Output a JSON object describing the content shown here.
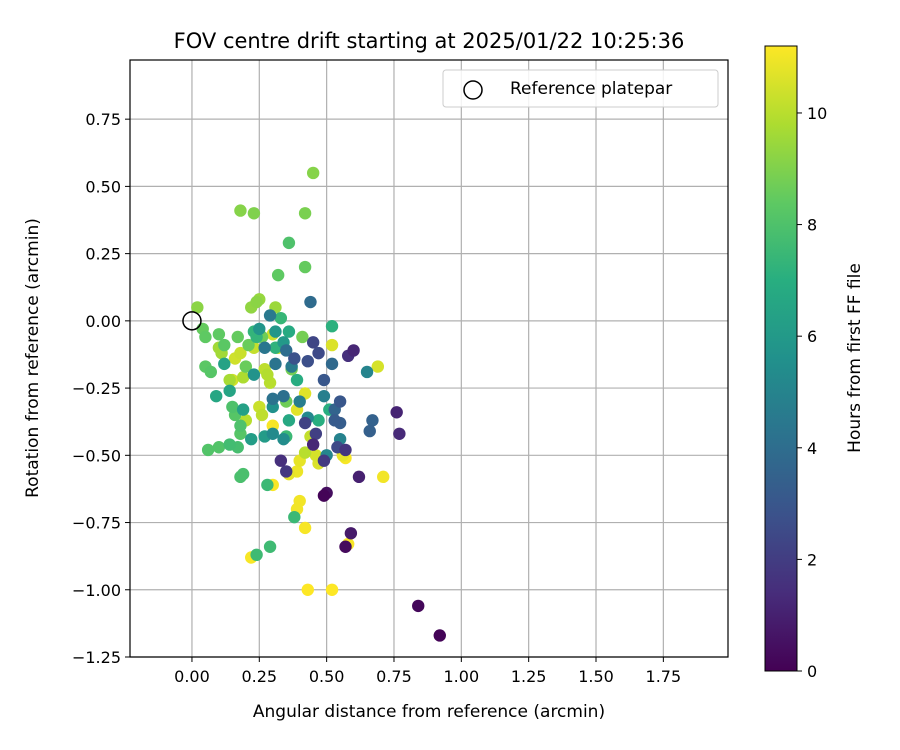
{
  "chart_data": {
    "type": "scatter",
    "title": "FOV centre drift starting at 2025/01/22 10:25:36",
    "xlabel": "Angular distance from reference (arcmin)",
    "ylabel": "Rotation from reference (arcmin)",
    "xlim": [
      -0.23,
      1.99
    ],
    "ylim": [
      -1.25,
      0.97
    ],
    "xticks": [
      "0.00",
      "0.25",
      "0.50",
      "0.75",
      "1.00",
      "1.25",
      "1.50",
      "1.75"
    ],
    "yticks": [
      "0.75",
      "0.50",
      "0.25",
      "0.00",
      "−0.25",
      "−0.50",
      "−0.75",
      "−1.00",
      "−1.25"
    ],
    "grid": true,
    "legend_position": "top-right",
    "legend": [
      {
        "label": "Reference platepar",
        "marker": "open-circle"
      }
    ],
    "reference_point": {
      "x": 0.0,
      "y": 0.0
    },
    "colorbar": {
      "label": "Hours from first FF file",
      "range": [
        0,
        11.2
      ],
      "ticks": [
        "0",
        "2",
        "4",
        "6",
        "8",
        "10"
      ],
      "colormap": "viridis"
    },
    "series": [
      {
        "points": [
          [
            0.92,
            -1.17,
            0.1
          ],
          [
            0.84,
            -1.06,
            0.2
          ],
          [
            0.49,
            -0.65,
            0.1
          ],
          [
            0.5,
            -0.64,
            0.4
          ],
          [
            0.57,
            -0.84,
            0.3
          ],
          [
            0.59,
            -0.79,
            0.8
          ],
          [
            0.62,
            -0.58,
            1.0
          ],
          [
            0.76,
            -0.34,
            1.1
          ],
          [
            0.77,
            -0.42,
            1.3
          ],
          [
            0.6,
            -0.11,
            1.2
          ],
          [
            0.58,
            -0.13,
            1.5
          ],
          [
            0.45,
            -0.46,
            1.2
          ],
          [
            0.33,
            -0.52,
            1.5
          ],
          [
            0.35,
            -0.56,
            1.8
          ],
          [
            0.57,
            -0.48,
            1.7
          ],
          [
            0.49,
            -0.52,
            1.9
          ],
          [
            0.46,
            -0.42,
            2.1
          ],
          [
            0.42,
            -0.38,
            2.2
          ],
          [
            0.45,
            -0.08,
            2.3
          ],
          [
            0.47,
            -0.12,
            2.5
          ],
          [
            0.54,
            -0.47,
            2.5
          ],
          [
            0.43,
            -0.15,
            2.7
          ],
          [
            0.38,
            -0.14,
            2.8
          ],
          [
            0.49,
            -0.22,
            3.0
          ],
          [
            0.55,
            -0.3,
            3.0
          ],
          [
            0.53,
            -0.37,
            3.2
          ],
          [
            0.55,
            -0.38,
            3.3
          ],
          [
            0.66,
            -0.41,
            3.4
          ],
          [
            0.67,
            -0.37,
            3.5
          ],
          [
            0.53,
            -0.33,
            3.6
          ],
          [
            0.52,
            -0.16,
            3.8
          ],
          [
            0.44,
            0.07,
            3.9
          ],
          [
            0.35,
            -0.11,
            4.0
          ],
          [
            0.34,
            -0.28,
            4.1
          ],
          [
            0.3,
            -0.29,
            4.2
          ],
          [
            0.31,
            -0.16,
            4.3
          ],
          [
            0.27,
            -0.1,
            4.4
          ],
          [
            0.29,
            0.02,
            4.5
          ],
          [
            0.37,
            -0.17,
            4.6
          ],
          [
            0.4,
            -0.3,
            4.7
          ],
          [
            0.49,
            -0.28,
            4.8
          ],
          [
            0.55,
            -0.44,
            4.9
          ],
          [
            0.65,
            -0.19,
            5.0
          ],
          [
            0.5,
            -0.5,
            5.1
          ],
          [
            0.43,
            -0.36,
            5.2
          ],
          [
            0.3,
            -0.42,
            5.3
          ],
          [
            0.34,
            -0.44,
            5.4
          ],
          [
            0.3,
            -0.32,
            5.6
          ],
          [
            0.23,
            -0.2,
            5.7
          ],
          [
            0.25,
            -0.03,
            5.8
          ],
          [
            0.31,
            -0.04,
            5.9
          ],
          [
            0.34,
            -0.08,
            6.0
          ],
          [
            0.27,
            -0.43,
            6.1
          ],
          [
            0.22,
            -0.44,
            6.2
          ],
          [
            0.19,
            -0.33,
            6.3
          ],
          [
            0.12,
            -0.16,
            6.4
          ],
          [
            0.14,
            -0.26,
            6.5
          ],
          [
            0.09,
            -0.28,
            6.6
          ],
          [
            0.36,
            -0.37,
            6.7
          ],
          [
            0.36,
            -0.04,
            6.8
          ],
          [
            0.39,
            -0.22,
            6.9
          ],
          [
            0.47,
            -0.37,
            7.0
          ],
          [
            0.51,
            -0.33,
            7.0
          ],
          [
            0.52,
            -0.02,
            7.1
          ],
          [
            0.31,
            -0.1,
            7.2
          ],
          [
            0.24,
            -0.06,
            7.3
          ],
          [
            0.23,
            -0.04,
            7.3
          ],
          [
            0.33,
            0.01,
            7.4
          ],
          [
            0.28,
            -0.61,
            7.5
          ],
          [
            0.35,
            -0.43,
            7.5
          ],
          [
            0.38,
            -0.73,
            7.5
          ],
          [
            0.29,
            -0.84,
            7.6
          ],
          [
            0.24,
            -0.87,
            7.6
          ],
          [
            0.14,
            -0.46,
            7.7
          ],
          [
            0.17,
            -0.47,
            7.8
          ],
          [
            0.19,
            -0.57,
            7.9
          ],
          [
            0.18,
            -0.58,
            7.9
          ],
          [
            0.15,
            -0.32,
            8.0
          ],
          [
            0.18,
            -0.39,
            8.0
          ],
          [
            0.06,
            -0.48,
            8.1
          ],
          [
            0.1,
            -0.47,
            8.1
          ],
          [
            0.18,
            -0.42,
            8.2
          ],
          [
            0.16,
            -0.35,
            8.2
          ],
          [
            0.07,
            -0.19,
            8.2
          ],
          [
            0.05,
            -0.17,
            8.3
          ],
          [
            0.12,
            -0.09,
            8.3
          ],
          [
            0.1,
            -0.05,
            8.4
          ],
          [
            0.05,
            -0.06,
            8.4
          ],
          [
            0.04,
            -0.03,
            8.5
          ],
          [
            0.17,
            -0.06,
            8.5
          ],
          [
            0.2,
            -0.17,
            8.6
          ],
          [
            0.21,
            -0.09,
            8.6
          ],
          [
            0.26,
            -0.06,
            8.7
          ],
          [
            0.35,
            -0.3,
            8.7
          ],
          [
            0.37,
            -0.18,
            8.8
          ],
          [
            0.41,
            -0.06,
            8.8
          ],
          [
            0.36,
            0.29,
            8.0
          ],
          [
            0.32,
            0.17,
            8.4
          ],
          [
            0.42,
            0.2,
            8.5
          ],
          [
            0.42,
            0.4,
            8.9
          ],
          [
            0.23,
            0.4,
            9.0
          ],
          [
            0.18,
            0.41,
            9.1
          ],
          [
            0.45,
            0.55,
            9.1
          ],
          [
            0.24,
            0.07,
            9.2
          ],
          [
            0.22,
            0.05,
            9.3
          ],
          [
            0.25,
            0.08,
            9.4
          ],
          [
            0.02,
            0.05,
            9.2
          ],
          [
            0.31,
            0.05,
            9.5
          ],
          [
            0.1,
            -0.1,
            9.6
          ],
          [
            0.11,
            -0.12,
            9.6
          ],
          [
            0.14,
            -0.22,
            9.7
          ],
          [
            0.19,
            -0.21,
            9.8
          ],
          [
            0.28,
            -0.2,
            9.9
          ],
          [
            0.29,
            -0.23,
            10.0
          ],
          [
            0.27,
            -0.18,
            10.1
          ],
          [
            0.23,
            -0.1,
            10.2
          ],
          [
            0.18,
            -0.12,
            10.3
          ],
          [
            0.16,
            -0.14,
            10.4
          ],
          [
            0.15,
            -0.22,
            10.4
          ],
          [
            0.2,
            -0.37,
            10.0
          ],
          [
            0.26,
            -0.35,
            10.1
          ],
          [
            0.25,
            -0.32,
            10.3
          ],
          [
            0.3,
            -0.05,
            10.4
          ],
          [
            0.32,
            -0.1,
            10.5
          ],
          [
            0.52,
            -0.09,
            10.6
          ],
          [
            0.42,
            -0.27,
            10.7
          ],
          [
            0.39,
            -0.33,
            10.7
          ],
          [
            0.42,
            -0.49,
            10.0
          ],
          [
            0.44,
            -0.43,
            10.2
          ],
          [
            0.46,
            -0.5,
            10.5
          ],
          [
            0.47,
            -0.53,
            10.6
          ],
          [
            0.4,
            -0.52,
            10.8
          ],
          [
            0.36,
            -0.57,
            10.8
          ],
          [
            0.39,
            -0.56,
            10.9
          ],
          [
            0.4,
            -0.67,
            11.0
          ],
          [
            0.39,
            -0.7,
            11.0
          ],
          [
            0.3,
            -0.39,
            11.1
          ],
          [
            0.3,
            -0.61,
            11.1
          ],
          [
            0.22,
            -0.88,
            11.1
          ],
          [
            0.42,
            -0.77,
            11.1
          ],
          [
            0.43,
            -1.0,
            11.2
          ],
          [
            0.52,
            -1.0,
            11.2
          ],
          [
            0.57,
            -0.51,
            11.1
          ],
          [
            0.58,
            -0.83,
            11.1
          ],
          [
            0.71,
            -0.58,
            11.0
          ],
          [
            0.69,
            -0.17,
            10.5
          ],
          [
            0.56,
            -0.5,
            10.8
          ]
        ]
      }
    ]
  }
}
